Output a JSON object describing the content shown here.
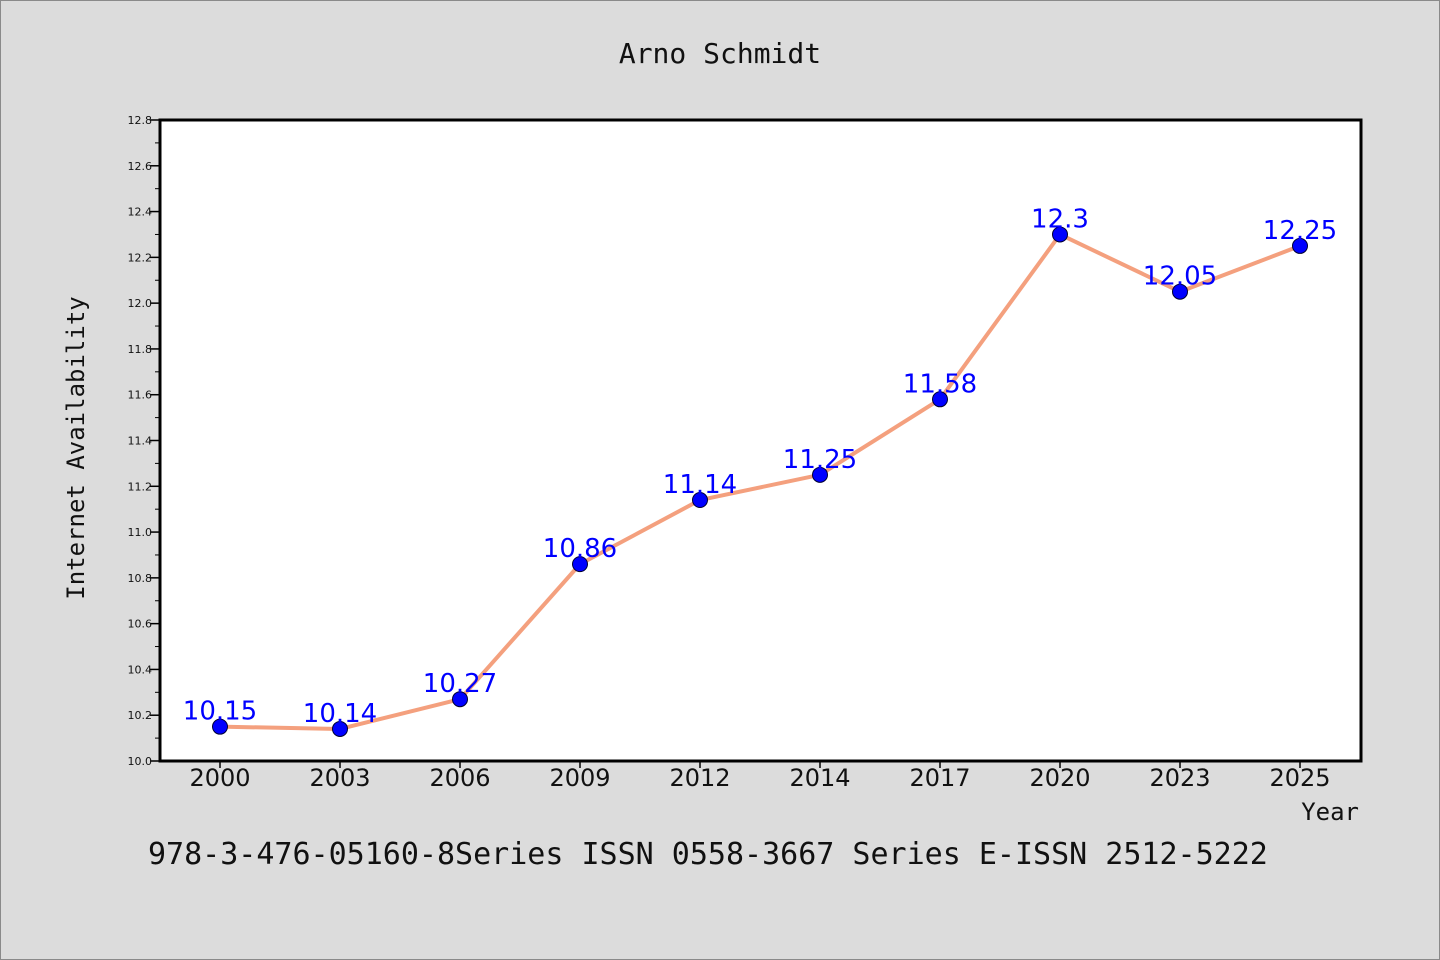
{
  "chart_data": {
    "type": "line",
    "title": "Arno Schmidt",
    "xlabel": "Year",
    "ylabel": "Internet Availability",
    "categories": [
      "2000",
      "2003",
      "2006",
      "2009",
      "2012",
      "2014",
      "2017",
      "2020",
      "2023",
      "2025"
    ],
    "series": [
      {
        "values": [
          10.15,
          10.14,
          10.27,
          10.86,
          11.14,
          11.25,
          11.58,
          12.3,
          12.05,
          12.25
        ]
      }
    ],
    "data_labels": [
      "10.15",
      "10.14",
      "10.27",
      "10.86",
      "11.14",
      "11.25",
      "11.58",
      "12.3",
      "12.05",
      "12.25"
    ],
    "ylim": [
      10.0,
      12.8
    ],
    "yticks": [
      "10.0",
      "10.2",
      "10.4",
      "10.6",
      "10.8",
      "11.0",
      "11.2",
      "11.4",
      "11.6",
      "11.8",
      "12.0",
      "12.2",
      "12.4",
      "12.6",
      "12.8"
    ],
    "grid": false,
    "line_color": "#f4a07e",
    "marker_color": "#0000ff",
    "label_color": "#0000ff"
  },
  "footer": "978-3-476-05160-8Series ISSN 0558-3667 Series E-ISSN 2512-5222"
}
